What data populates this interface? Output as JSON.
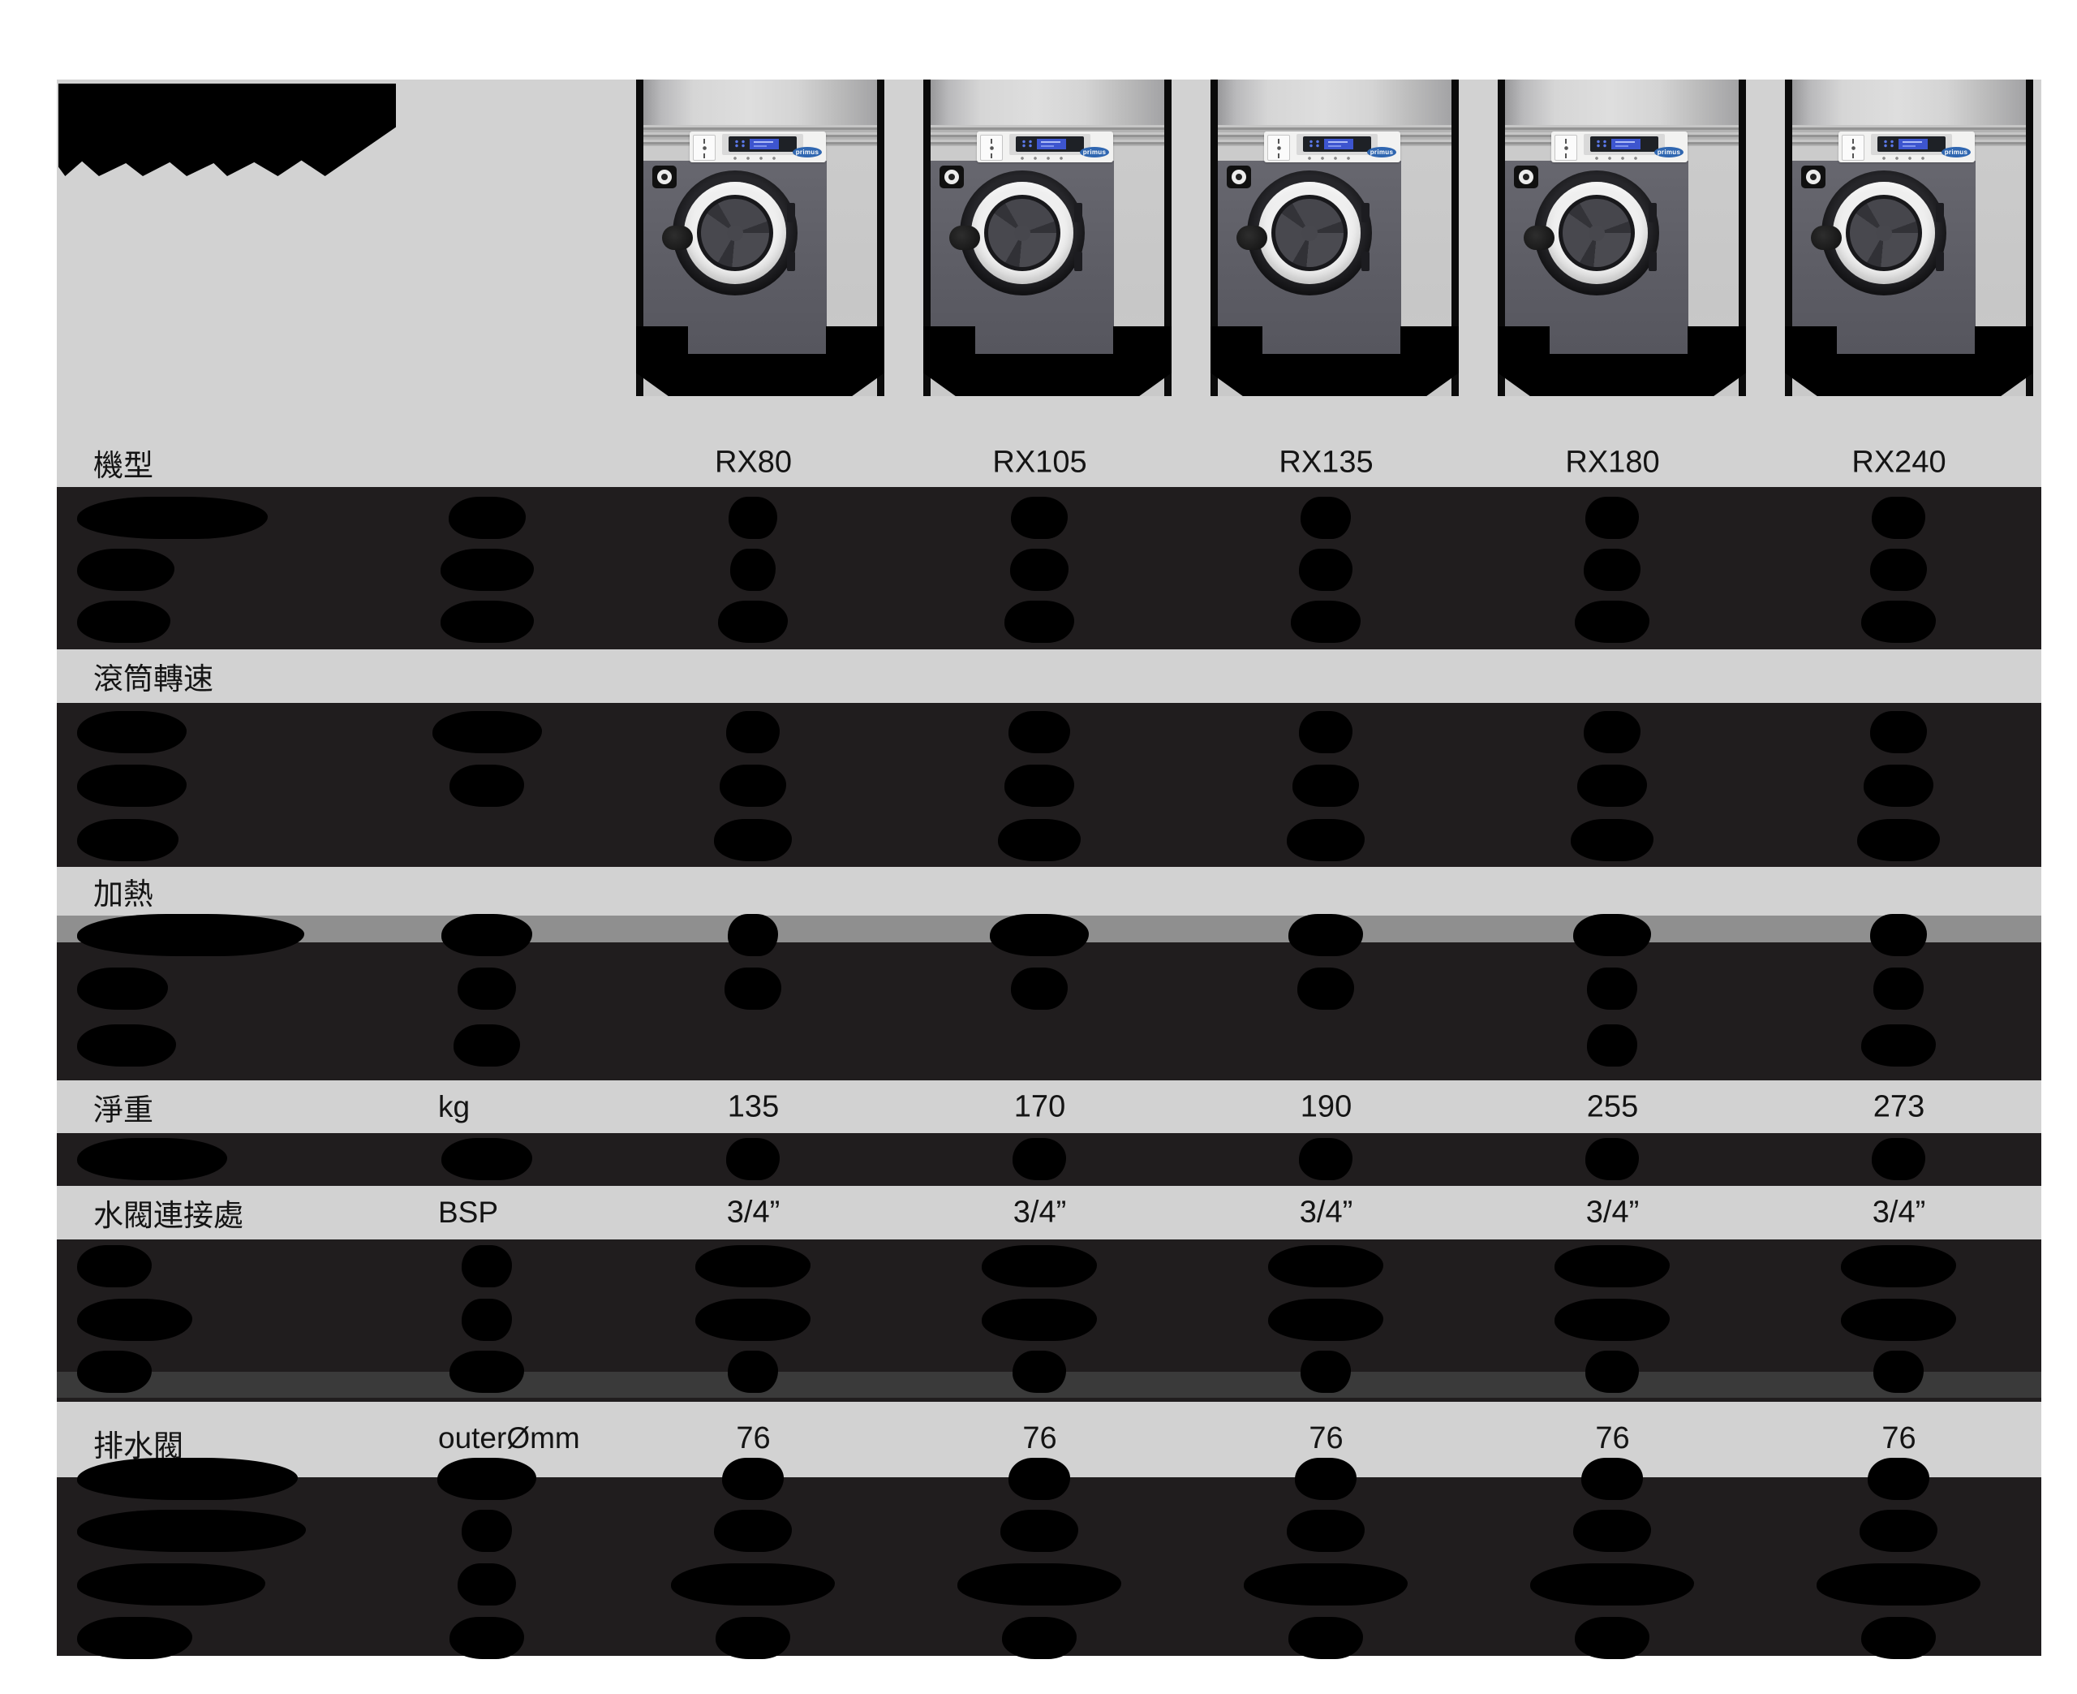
{
  "brand": {
    "logo_text": "primus"
  },
  "header": {
    "model_row_label": "機型",
    "models": [
      "RX80",
      "RX105",
      "RX135",
      "RX180",
      "RX240"
    ]
  },
  "sections": {
    "drum_speed_label": "滾筒轉速",
    "heating_label": "加熱"
  },
  "spec_rows": {
    "net_weight": {
      "label": "淨重",
      "unit": "kg",
      "values": [
        "135",
        "170",
        "190",
        "255",
        "273"
      ]
    },
    "water_valve": {
      "label": "水閥連接處",
      "unit": "BSP",
      "values": [
        "3/4”",
        "3/4”",
        "3/4”",
        "3/4”",
        "3/4”"
      ]
    },
    "drain_valve": {
      "label": "排水閥",
      "unit": "outerØmm",
      "values": [
        "76",
        "76",
        "76",
        "76",
        "76"
      ]
    }
  },
  "colors": {
    "page_bg": "#ffffff",
    "content_bg": "#d2d2d2",
    "dark_row": "#201d1e",
    "gray_band": "#8f8f8f",
    "darkgray_band": "#3a3a3a",
    "display_blue": "#3d55cf",
    "brand_blue": "#2f66b0"
  }
}
